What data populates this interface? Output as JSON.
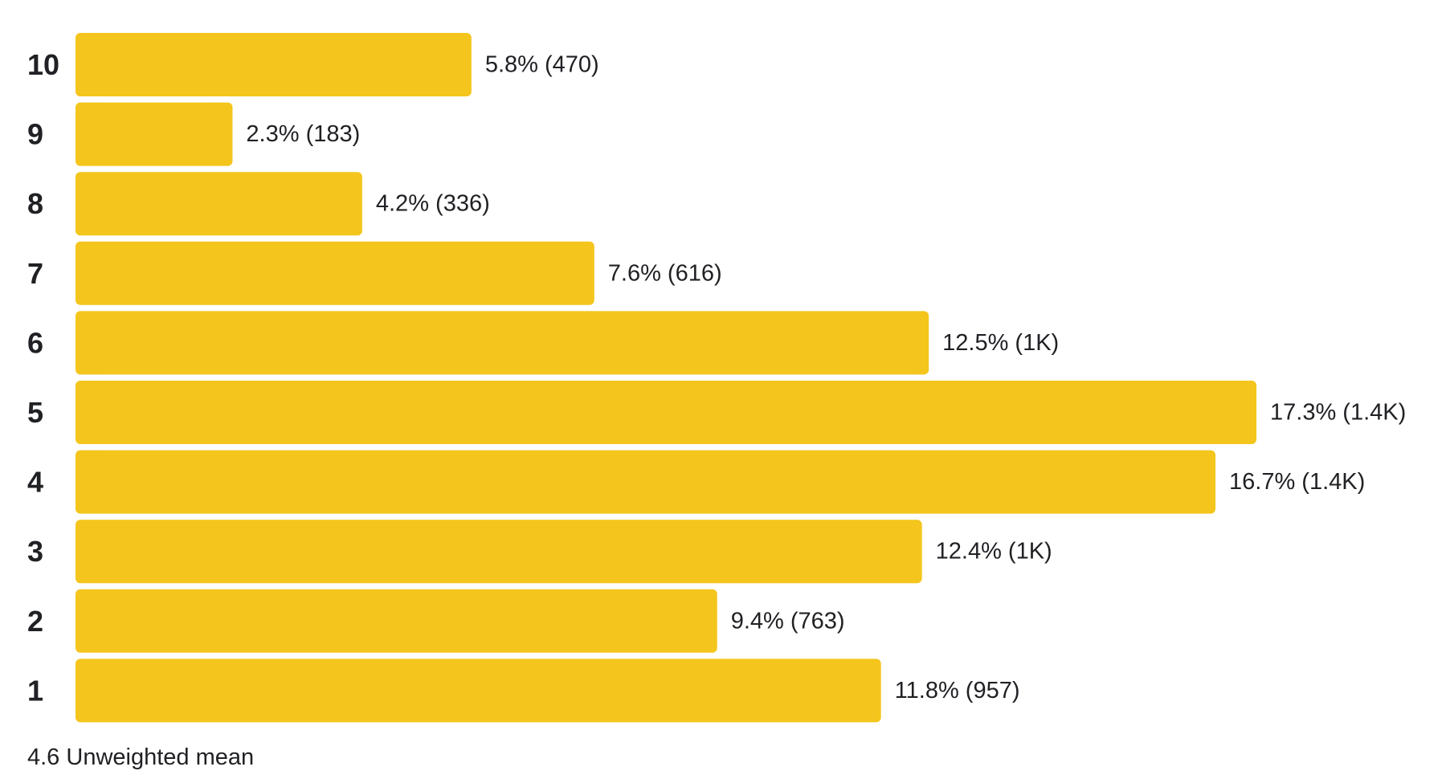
{
  "chart_data": {
    "type": "bar",
    "orientation": "horizontal",
    "categories": [
      "10",
      "9",
      "8",
      "7",
      "6",
      "5",
      "4",
      "3",
      "2",
      "1"
    ],
    "values": [
      5.8,
      2.3,
      4.2,
      7.6,
      12.5,
      17.3,
      16.7,
      12.4,
      9.4,
      11.8
    ],
    "value_labels": [
      "5.8% (470)",
      "2.3% (183)",
      "4.2% (336)",
      "7.6% (616)",
      "12.5% (1K)",
      "17.3% (1.4K)",
      "16.7% (1.4K)",
      "12.4% (1K)",
      "9.4% (763)",
      "11.8% (957)"
    ],
    "unit": "%",
    "xlim": [
      0,
      17.3
    ],
    "grid": false,
    "legend": "none",
    "bar_color": "#F4C51C",
    "title": "",
    "xlabel": "",
    "ylabel": ""
  },
  "footer": {
    "summary": "4.6 Unweighted mean"
  }
}
